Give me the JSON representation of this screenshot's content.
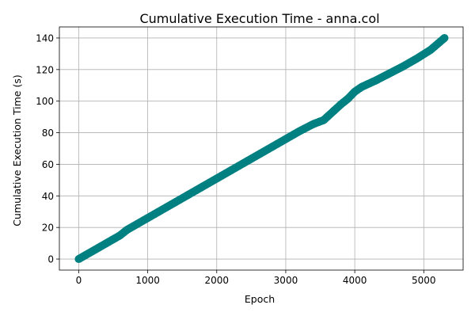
{
  "chart_data": {
    "type": "scatter",
    "title": "Cumulative Execution Time - anna.col",
    "xlabel": "Epoch",
    "ylabel": "Cumulative Execution Time (s)",
    "xlim": [
      -280,
      5570
    ],
    "ylim": [
      -7,
      147
    ],
    "xticks": [
      0,
      1000,
      2000,
      3000,
      4000,
      5000
    ],
    "xtick_labels": [
      "0",
      "1000",
      "2000",
      "3000",
      "4000",
      "5000"
    ],
    "yticks": [
      0,
      20,
      40,
      60,
      80,
      100,
      120,
      140
    ],
    "ytick_labels": [
      "0",
      "20",
      "40",
      "60",
      "80",
      "100",
      "120",
      "140"
    ],
    "grid": true,
    "legend": "none",
    "color": "#008080",
    "series": [
      {
        "marker": "circle",
        "x": [
          0,
          100,
          200,
          300,
          400,
          500,
          600,
          700,
          800,
          900,
          1000,
          1200,
          1400,
          1600,
          1800,
          2000,
          2200,
          2400,
          2600,
          2800,
          3000,
          3200,
          3400,
          3550,
          3600,
          3700,
          3800,
          3900,
          4000,
          4100,
          4300,
          4500,
          4700,
          4900,
          5100,
          5300
        ],
        "y": [
          0,
          2.5,
          5,
          7.5,
          10,
          12.5,
          15,
          18.5,
          21,
          23.5,
          26,
          31,
          36,
          41,
          46,
          51,
          56,
          61,
          66,
          71,
          76,
          81,
          85.5,
          88,
          90,
          94,
          98,
          101.5,
          106,
          109,
          113,
          117.5,
          122,
          127,
          132.5,
          140
        ]
      }
    ]
  }
}
